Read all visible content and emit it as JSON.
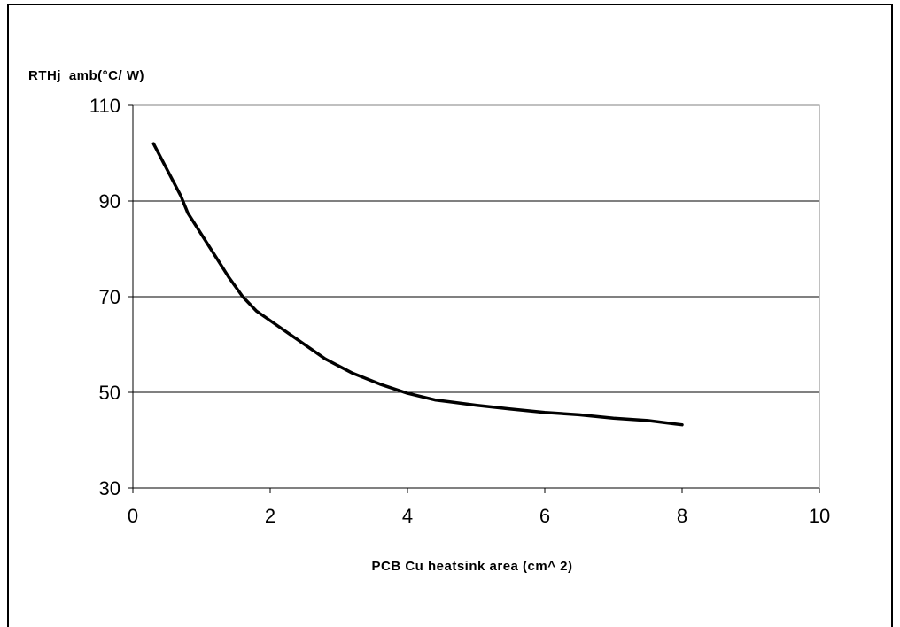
{
  "chart_data": {
    "type": "line",
    "title": "",
    "ylabel": "RTHj_amb(°C/ W)",
    "xlabel": "PCB Cu heatsink area (cm^ 2)",
    "xlim": [
      0,
      10
    ],
    "ylim": [
      30,
      110
    ],
    "x_ticks": [
      0,
      2,
      4,
      6,
      8,
      10
    ],
    "y_ticks": [
      30,
      50,
      70,
      90,
      110
    ],
    "grid": "horizontal",
    "legend": "none",
    "line_color": "#000000",
    "series": [
      {
        "x": [
          0.3,
          0.5,
          0.7,
          0.8,
          1.0,
          1.2,
          1.4,
          1.6,
          1.8,
          2.0,
          2.4,
          2.8,
          3.2,
          3.6,
          4.0,
          4.4,
          5.0,
          5.5,
          6.0,
          6.5,
          7.0,
          7.5,
          8.0
        ],
        "y": [
          102,
          96.5,
          91,
          87.5,
          83,
          78.5,
          74,
          70,
          67,
          65,
          61,
          57,
          54,
          51.7,
          49.8,
          48.4,
          47.3,
          46.5,
          45.8,
          45.3,
          44.6,
          44.1,
          43.2
        ]
      }
    ]
  }
}
